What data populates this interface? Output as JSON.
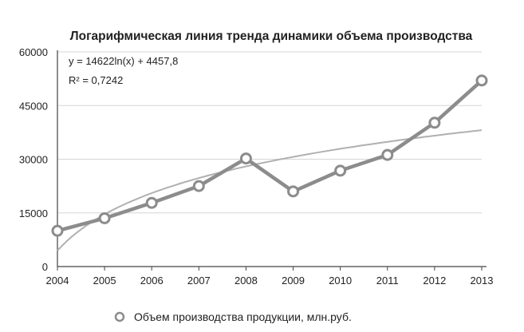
{
  "chart_data": {
    "type": "line",
    "title": "Логарифмическая линия тренда динамики объема производства",
    "x": [
      "2004",
      "2005",
      "2006",
      "2007",
      "2008",
      "2009",
      "2010",
      "2011",
      "2012",
      "2013"
    ],
    "y_ticks": [
      "0",
      "15000",
      "30000",
      "45000",
      "60000"
    ],
    "ylim": [
      0,
      60000
    ],
    "grid": true,
    "series": [
      {
        "name": "Объем производства продукции, млн.руб.",
        "values": [
          10000,
          13500,
          17800,
          22500,
          30200,
          21000,
          26800,
          31200,
          40200,
          52000
        ],
        "color": "#8c8c8c"
      }
    ],
    "trendline": {
      "type": "logarithmic",
      "a": 14622,
      "b": 4457.8,
      "equation": "y = 14622ln(x) + 4457,8",
      "r2_label": "R² = 0,7242",
      "color": "#b0b0b0"
    },
    "legend": {
      "position": "bottom",
      "label": "Объем производства продукции, млн.руб."
    }
  }
}
